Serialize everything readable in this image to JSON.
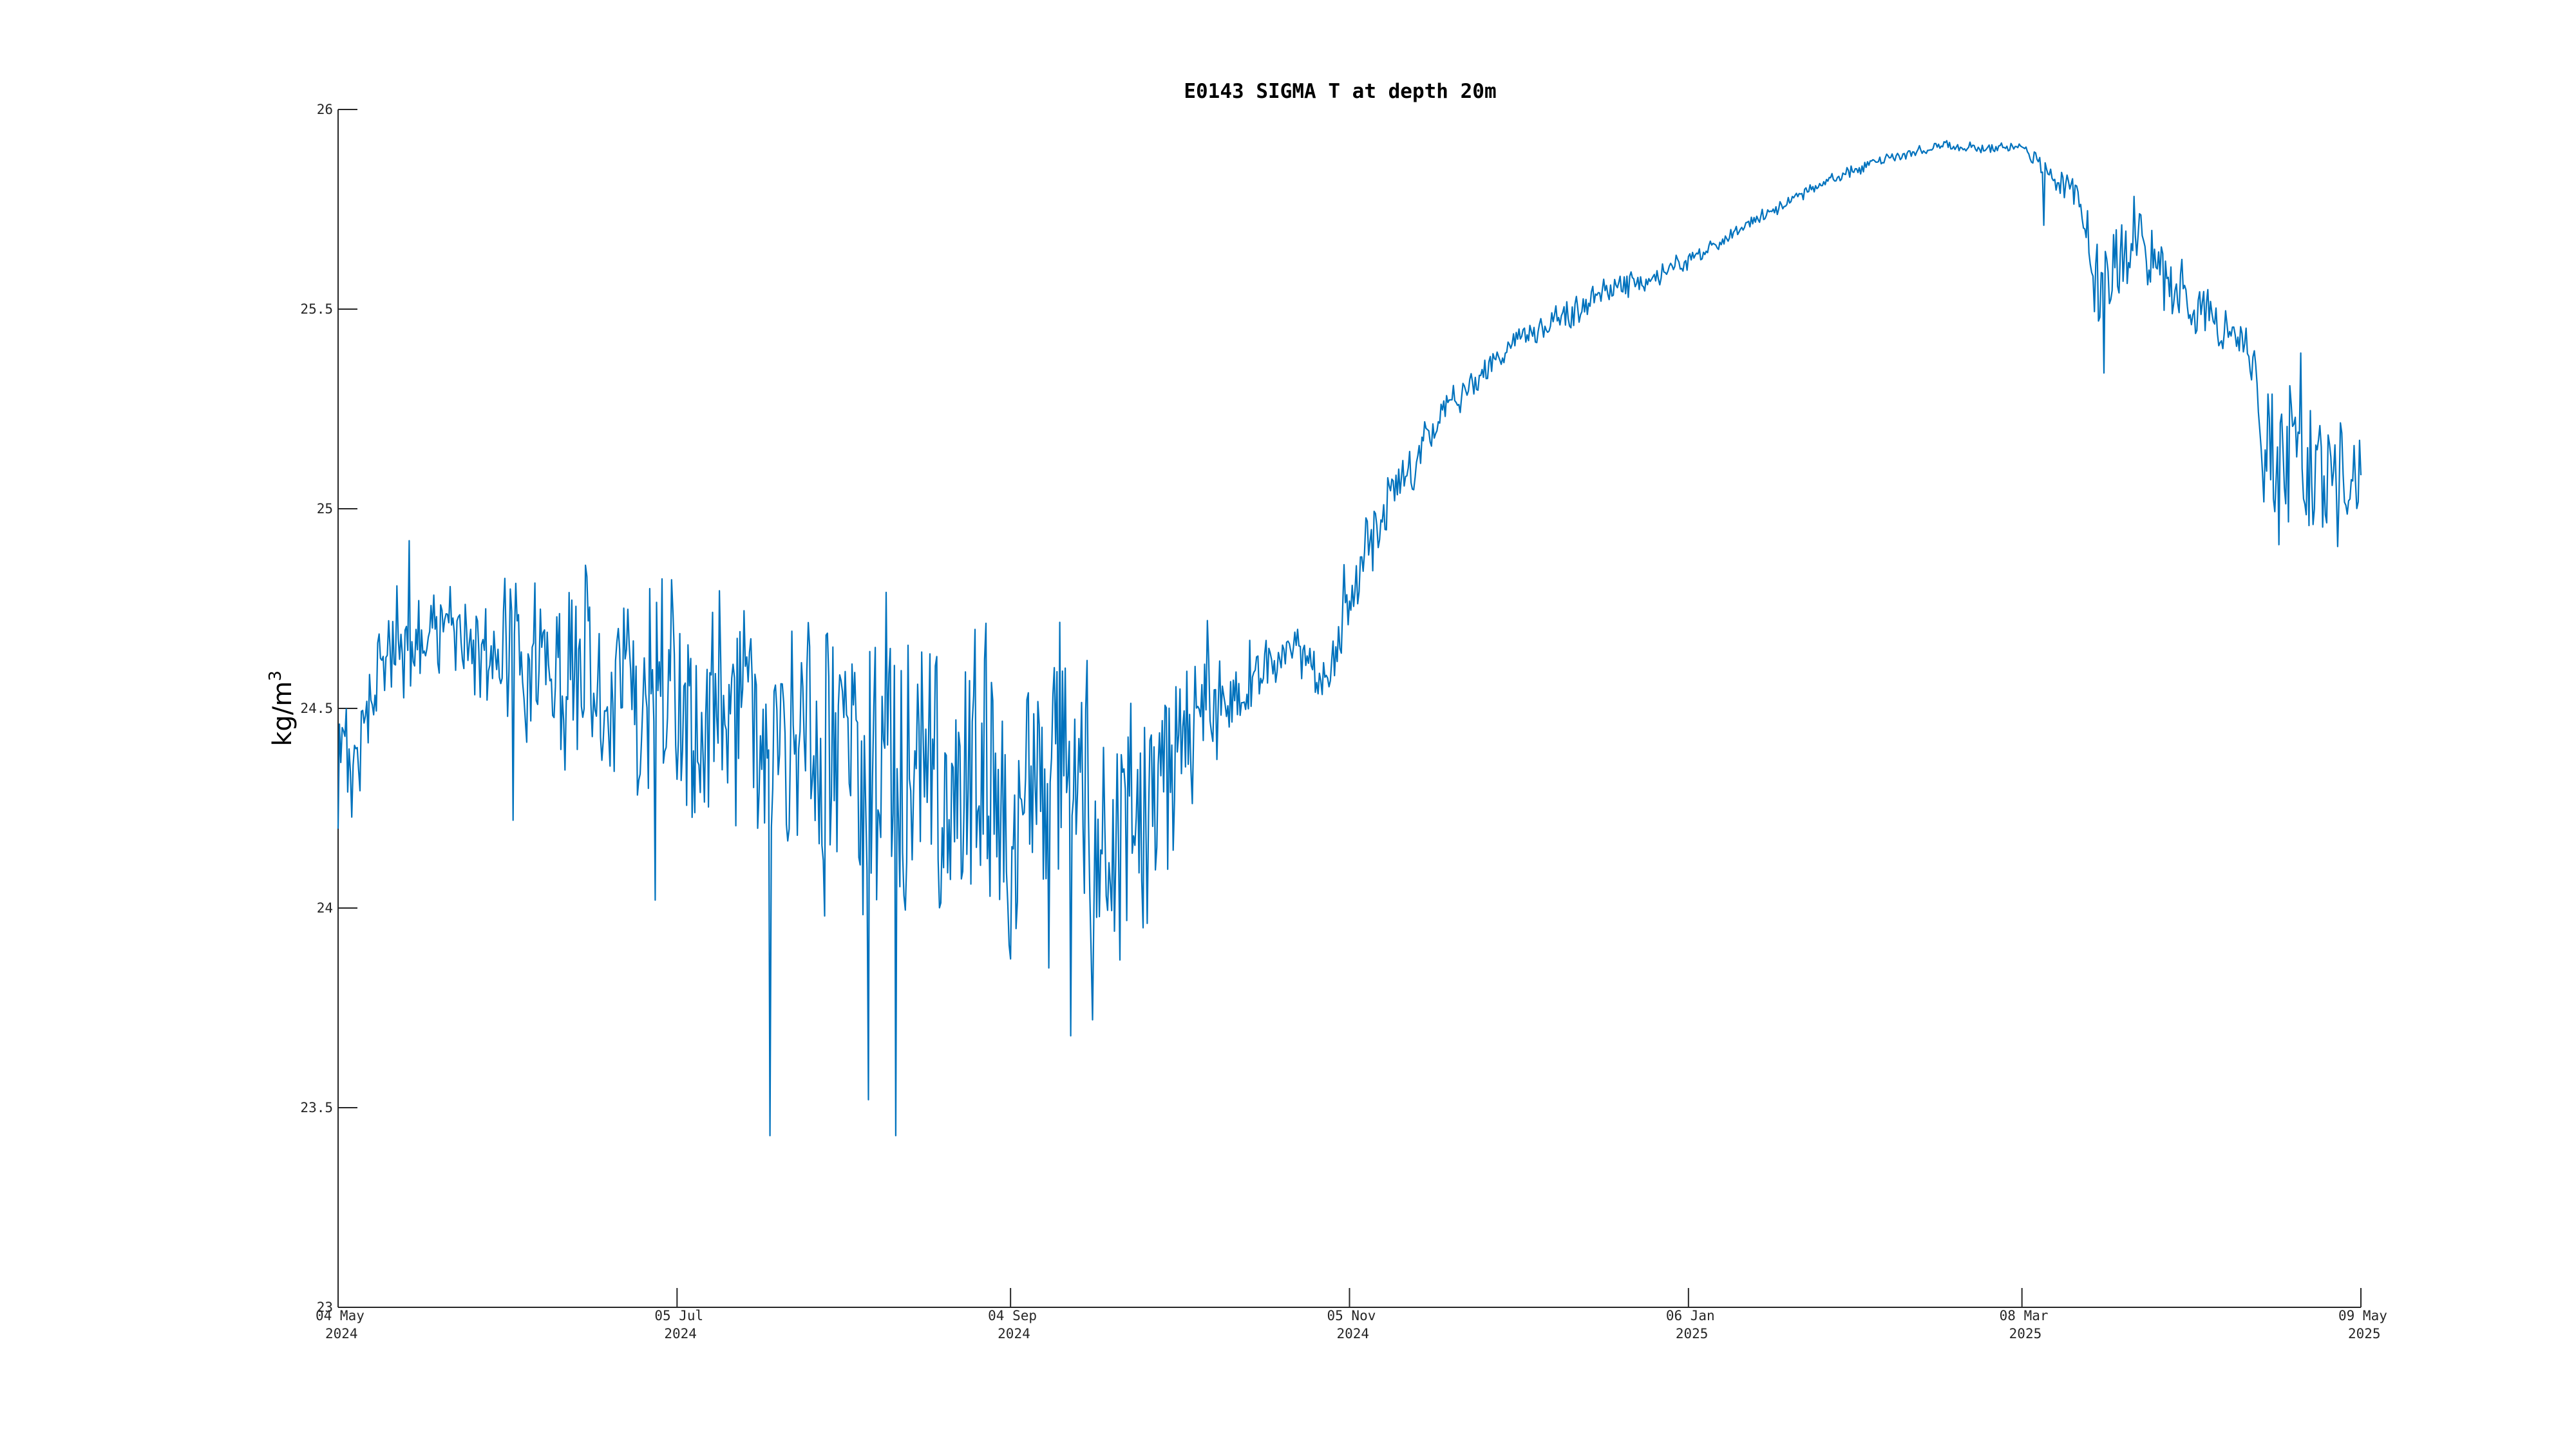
{
  "chart_data": {
    "type": "line",
    "title": "E0143 SIGMA T at depth 20m",
    "xlabel": "",
    "ylabel": "kg/m",
    "ylabel_superscript": "3",
    "xlim": [
      "2024-05-04",
      "2025-05-09"
    ],
    "ylim": [
      23,
      26
    ],
    "grid": false,
    "y_ticks": [
      {
        "value": 23,
        "label": "23"
      },
      {
        "value": 23.5,
        "label": "23.5"
      },
      {
        "value": 24,
        "label": "24"
      },
      {
        "value": 24.5,
        "label": "24.5"
      },
      {
        "value": 25,
        "label": "25"
      },
      {
        "value": 25.5,
        "label": "25.5"
      },
      {
        "value": 26,
        "label": "26"
      }
    ],
    "x_ticks": [
      {
        "date": "2024-05-04",
        "line1": "04 May",
        "line2": "2024"
      },
      {
        "date": "2024-07-05",
        "line1": "05 Jul",
        "line2": "2024"
      },
      {
        "date": "2024-09-04",
        "line1": "04 Sep",
        "line2": "2024"
      },
      {
        "date": "2024-11-05",
        "line1": "05 Nov",
        "line2": "2024"
      },
      {
        "date": "2025-01-06",
        "line1": "06 Jan",
        "line2": "2025"
      },
      {
        "date": "2025-03-08",
        "line1": "08 Mar",
        "line2": "2025"
      },
      {
        "date": "2025-05-09",
        "line1": "09 May",
        "line2": "2025"
      }
    ],
    "series": [
      {
        "color": "#0072BD",
        "trend": [
          {
            "x": "2024-05-04",
            "y": 24.3,
            "band": 0.25
          },
          {
            "x": "2024-05-12",
            "y": 24.62,
            "band": 0.2
          },
          {
            "x": "2024-05-20",
            "y": 24.72,
            "band": 0.16
          },
          {
            "x": "2024-06-01",
            "y": 24.66,
            "band": 0.22
          },
          {
            "x": "2024-06-15",
            "y": 24.58,
            "band": 0.3
          },
          {
            "x": "2024-07-01",
            "y": 24.53,
            "band": 0.36
          },
          {
            "x": "2024-07-20",
            "y": 24.47,
            "band": 0.42
          },
          {
            "x": "2024-08-05",
            "y": 24.37,
            "band": 0.5
          },
          {
            "x": "2024-08-20",
            "y": 24.27,
            "band": 0.55
          },
          {
            "x": "2024-09-05",
            "y": 24.36,
            "band": 0.5
          },
          {
            "x": "2024-09-20",
            "y": 24.26,
            "band": 0.48
          },
          {
            "x": "2024-09-28",
            "y": 24.2,
            "band": 0.4
          },
          {
            "x": "2024-10-05",
            "y": 24.5,
            "band": 0.32
          },
          {
            "x": "2024-10-15",
            "y": 24.53,
            "band": 0.16
          },
          {
            "x": "2024-10-25",
            "y": 24.64,
            "band": 0.08
          },
          {
            "x": "2024-11-01",
            "y": 24.57,
            "band": 0.08
          },
          {
            "x": "2024-11-08",
            "y": 24.9,
            "band": 0.12
          },
          {
            "x": "2024-11-20",
            "y": 25.2,
            "band": 0.06
          },
          {
            "x": "2024-12-05",
            "y": 25.42,
            "band": 0.04
          },
          {
            "x": "2024-12-20",
            "y": 25.53,
            "band": 0.05
          },
          {
            "x": "2025-01-06",
            "y": 25.62,
            "band": 0.03
          },
          {
            "x": "2025-01-20",
            "y": 25.74,
            "band": 0.02
          },
          {
            "x": "2025-02-05",
            "y": 25.85,
            "band": 0.02
          },
          {
            "x": "2025-02-20",
            "y": 25.91,
            "band": 0.015
          },
          {
            "x": "2025-03-08",
            "y": 25.9,
            "band": 0.02
          },
          {
            "x": "2025-03-18",
            "y": 25.8,
            "band": 0.06
          },
          {
            "x": "2025-03-22",
            "y": 25.52,
            "band": 0.2
          },
          {
            "x": "2025-03-28",
            "y": 25.68,
            "band": 0.16
          },
          {
            "x": "2025-04-08",
            "y": 25.52,
            "band": 0.1
          },
          {
            "x": "2025-04-18",
            "y": 25.42,
            "band": 0.06
          },
          {
            "x": "2025-04-22",
            "y": 25.12,
            "band": 0.3
          },
          {
            "x": "2025-05-09",
            "y": 25.1,
            "band": 0.18
          }
        ],
        "extremes": [
          {
            "x": "2024-05-17",
            "y": 24.92
          },
          {
            "x": "2024-06-05",
            "y": 24.22
          },
          {
            "x": "2024-06-30",
            "y": 24.8
          },
          {
            "x": "2024-07-01",
            "y": 24.02
          },
          {
            "x": "2024-07-22",
            "y": 23.43
          },
          {
            "x": "2024-08-01",
            "y": 23.98
          },
          {
            "x": "2024-08-09",
            "y": 23.52
          },
          {
            "x": "2024-08-14",
            "y": 23.43
          },
          {
            "x": "2024-08-13",
            "y": 24.65
          },
          {
            "x": "2024-09-11",
            "y": 23.85
          },
          {
            "x": "2024-09-15",
            "y": 23.68
          },
          {
            "x": "2024-09-18",
            "y": 24.62
          },
          {
            "x": "2024-09-19",
            "y": 23.72
          },
          {
            "x": "2024-09-24",
            "y": 23.87
          },
          {
            "x": "2024-10-10",
            "y": 24.72
          },
          {
            "x": "2024-11-04",
            "y": 24.86
          },
          {
            "x": "2025-03-12",
            "y": 25.71
          },
          {
            "x": "2025-03-23",
            "y": 25.34
          },
          {
            "x": "2025-04-24",
            "y": 24.91
          },
          {
            "x": "2025-04-28",
            "y": 25.39
          }
        ]
      }
    ]
  }
}
